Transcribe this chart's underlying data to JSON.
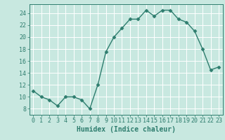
{
  "x": [
    0,
    1,
    2,
    3,
    4,
    5,
    6,
    7,
    8,
    9,
    10,
    11,
    12,
    13,
    14,
    15,
    16,
    17,
    18,
    19,
    20,
    21,
    22,
    23
  ],
  "y": [
    11,
    10,
    9.5,
    8.5,
    10,
    10,
    9.5,
    8,
    12,
    17.5,
    20,
    21.5,
    23,
    23,
    24.5,
    23.5,
    24.5,
    24.5,
    23,
    22.5,
    21,
    18,
    14.5,
    15
  ],
  "line_color": "#2e7d6e",
  "marker": "D",
  "marker_size": 2.5,
  "bg_color": "#c8e8e0",
  "grid_color": "#ffffff",
  "xlabel": "Humidex (Indice chaleur)",
  "xlim": [
    -0.5,
    23.5
  ],
  "ylim": [
    7,
    25.5
  ],
  "yticks": [
    8,
    10,
    12,
    14,
    16,
    18,
    20,
    22,
    24
  ],
  "xticks": [
    0,
    1,
    2,
    3,
    4,
    5,
    6,
    7,
    8,
    9,
    10,
    11,
    12,
    13,
    14,
    15,
    16,
    17,
    18,
    19,
    20,
    21,
    22,
    23
  ],
  "tick_fontsize": 6,
  "xlabel_fontsize": 7,
  "line_width": 1.0
}
